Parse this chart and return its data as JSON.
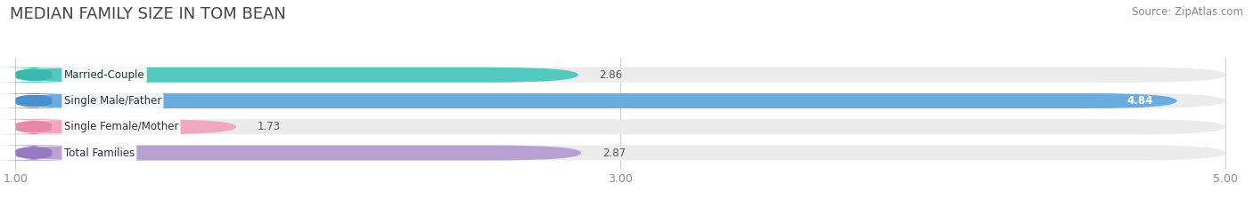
{
  "title": "MEDIAN FAMILY SIZE IN TOM BEAN",
  "source": "Source: ZipAtlas.com",
  "categories": [
    "Married-Couple",
    "Single Male/Father",
    "Single Female/Mother",
    "Total Families"
  ],
  "values": [
    2.86,
    4.84,
    1.73,
    2.87
  ],
  "bar_colors": [
    "#52c8be",
    "#6aace0",
    "#f0a8c0",
    "#b8a0d0"
  ],
  "tab_colors": [
    "#3ab8ae",
    "#4a90d0",
    "#e888a8",
    "#9878c0"
  ],
  "xmin": 1.0,
  "xmax": 5.0,
  "xticks": [
    1.0,
    3.0,
    5.0
  ],
  "background_color": "#ffffff",
  "bar_bg_color": "#ebebeb",
  "label_fontsize": 8.5,
  "value_fontsize": 8.5,
  "title_fontsize": 13,
  "source_fontsize": 8.5
}
